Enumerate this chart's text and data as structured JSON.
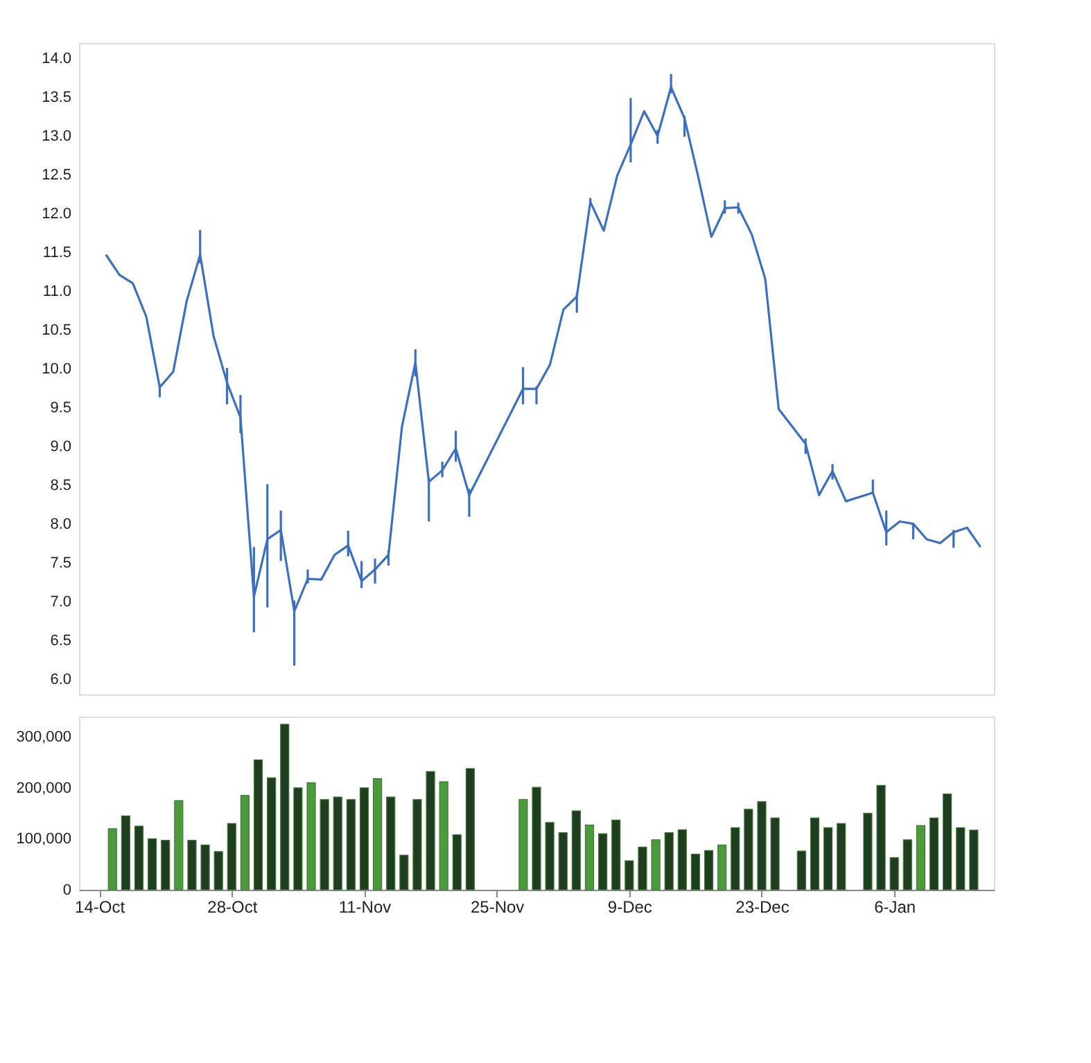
{
  "chart_data": [
    {
      "type": "line",
      "tick_labels": "y",
      "categories": [
        null,
        null,
        null,
        null,
        null,
        null,
        null,
        null,
        null,
        null,
        null,
        null,
        null,
        null,
        null,
        null,
        null,
        null,
        null,
        null,
        null,
        null,
        null,
        null,
        null,
        null,
        null,
        null,
        null,
        null,
        null,
        null,
        null,
        null,
        null,
        null,
        null,
        null,
        null,
        null,
        null,
        null,
        null,
        null,
        null,
        null,
        null,
        null,
        null,
        null,
        null,
        null,
        null,
        null,
        null,
        null,
        null,
        null,
        null,
        null,
        null,
        null,
        null,
        null,
        null,
        null,
        null
      ],
      "ylim": [
        5.8,
        14.2
      ],
      "yticks": [
        {
          "value": 6,
          "label": "6.0"
        },
        {
          "value": 6.5,
          "label": "6.5"
        },
        {
          "value": 7,
          "label": "7.0"
        },
        {
          "value": 7.5,
          "label": "7.5"
        },
        {
          "value": 8,
          "label": "8.0"
        },
        {
          "value": 8.5,
          "label": "8.5"
        },
        {
          "value": 9,
          "label": "9.0"
        },
        {
          "value": 9.5,
          "label": "9.5"
        },
        {
          "value": 10,
          "label": "10.0"
        },
        {
          "value": 10.5,
          "label": "10.5"
        },
        {
          "value": 11,
          "label": "11.0"
        },
        {
          "value": 11.5,
          "label": "11.5"
        },
        {
          "value": 12,
          "label": "12.0"
        },
        {
          "value": 12.5,
          "label": "12.5"
        },
        {
          "value": 13,
          "label": "13.0"
        },
        {
          "value": 13.5,
          "label": "13.5"
        },
        {
          "value": 14,
          "label": "14.0"
        }
      ],
      "series": [
        {
          "color": "#3b6fc0",
          "values": [
            null,
            11.47,
            11.21,
            11.1,
            10.67,
            9.76,
            9.96,
            10.87,
            11.47,
            10.42,
            9.82,
            9.37,
            7.06,
            7.8,
            7.92,
            6.87,
            7.29,
            7.28,
            7.6,
            7.72,
            7.26,
            7.41,
            7.6,
            9.25,
            10.08,
            8.54,
            8.69,
            8.97,
            8.37,
            null,
            null,
            null,
            9.74,
            9.74,
            10.05,
            10.76,
            10.93,
            12.15,
            11.78,
            12.49,
            12.89,
            13.32,
            13.0,
            13.63,
            13.23,
            12.49,
            11.7,
            12.07,
            12.08,
            11.73,
            11.16,
            9.48,
            null,
            9.03,
            8.37,
            8.68,
            8.29,
            null,
            8.4,
            7.89,
            8.03,
            8.0,
            7.8,
            7.75,
            7.89,
            7.95,
            7.7
          ],
          "errors": [
            null,
            null,
            null,
            null,
            null,
            [
              9.63,
              9.8
            ],
            null,
            null,
            [
              11.36,
              11.79
            ],
            null,
            [
              9.54,
              10.01
            ],
            [
              9.17,
              9.66
            ],
            [
              6.6,
              7.7
            ],
            [
              6.92,
              8.51
            ],
            [
              7.52,
              8.17
            ],
            [
              6.17,
              7.01
            ],
            [
              7.23,
              7.41
            ],
            null,
            null,
            [
              7.58,
              7.91
            ],
            [
              7.17,
              7.52
            ],
            [
              7.23,
              7.55
            ],
            [
              7.46,
              7.66
            ],
            null,
            [
              9.9,
              10.25
            ],
            [
              8.03,
              8.6
            ],
            [
              8.6,
              8.8
            ],
            [
              8.8,
              9.2
            ],
            [
              8.09,
              8.45
            ],
            null,
            null,
            null,
            [
              9.54,
              10.02
            ],
            [
              9.54,
              9.77
            ],
            null,
            null,
            [
              10.72,
              10.98
            ],
            [
              12.1,
              12.2
            ],
            null,
            null,
            [
              12.66,
              13.49
            ],
            null,
            [
              12.9,
              13.08
            ],
            [
              13.55,
              13.8
            ],
            [
              12.99,
              13.26
            ],
            null,
            null,
            [
              12.0,
              12.17
            ],
            [
              12.0,
              12.14
            ],
            null,
            null,
            null,
            null,
            [
              8.9,
              9.1
            ],
            null,
            [
              8.57,
              8.77
            ],
            null,
            null,
            [
              8.4,
              8.57
            ],
            [
              7.72,
              8.17
            ],
            null,
            [
              7.8,
              8.0
            ],
            null,
            null,
            [
              7.69,
              7.92
            ],
            null,
            null
          ]
        }
      ]
    },
    {
      "type": "bar",
      "categories": [
        "14-Oct",
        null,
        null,
        null,
        null,
        null,
        null,
        null,
        null,
        null,
        "28-Oct",
        null,
        null,
        null,
        null,
        null,
        null,
        null,
        null,
        null,
        "11-Nov",
        null,
        null,
        null,
        null,
        null,
        null,
        null,
        null,
        null,
        "25-Nov",
        null,
        null,
        null,
        null,
        null,
        null,
        null,
        null,
        null,
        "9-Dec",
        null,
        null,
        null,
        null,
        null,
        null,
        null,
        null,
        null,
        "23-Dec",
        null,
        null,
        null,
        null,
        null,
        null,
        null,
        null,
        null,
        "6-Jan",
        null,
        null,
        null,
        null,
        null,
        null
      ],
      "ylim": [
        0,
        340000
      ],
      "yticks": [
        0,
        {
          "value": 100000,
          "label": "100,000"
        },
        {
          "value": 200000,
          "label": "200,000"
        },
        {
          "value": 300000,
          "label": "300,000"
        }
      ],
      "values": [
        null,
        120000,
        145000,
        125000,
        100000,
        97000,
        175000,
        97000,
        88000,
        75000,
        130000,
        185000,
        255000,
        220000,
        325000,
        200000,
        210000,
        177000,
        182000,
        177000,
        200000,
        218000,
        182000,
        68000,
        177000,
        232000,
        212000,
        108000,
        238000,
        null,
        null,
        null,
        177000,
        201000,
        132000,
        112000,
        155000,
        127000,
        110000,
        137000,
        57000,
        84000,
        98000,
        112000,
        118000,
        70000,
        77000,
        88000,
        122000,
        158000,
        173000,
        141000,
        null,
        76000,
        141000,
        122000,
        130000,
        null,
        150000,
        205000,
        63000,
        98000,
        126000,
        141000,
        188000,
        122000,
        117000
      ],
      "colors": [
        "#1f3d1f",
        "#4c9a3c",
        "#1f3d1f",
        "#1f3d1f",
        "#1f3d1f",
        "#1f3d1f",
        "#4c9a3c",
        "#1f3d1f",
        "#1f3d1f",
        "#1f3d1f",
        "#1f3d1f",
        "#4c9a3c",
        "#1f3d1f",
        "#1f3d1f",
        "#1f3d1f",
        "#1f3d1f",
        "#4c9a3c",
        "#1f3d1f",
        "#1f3d1f",
        "#1f3d1f",
        "#1f3d1f",
        "#4c9a3c",
        "#1f3d1f",
        "#1f3d1f",
        "#1f3d1f",
        "#1f3d1f",
        "#4c9a3c",
        "#1f3d1f",
        "#1f3d1f",
        "#1f3d1f",
        "#1f3d1f",
        "#1f3d1f",
        "#4c9a3c",
        "#1f3d1f",
        "#1f3d1f",
        "#1f3d1f",
        "#1f3d1f",
        "#4c9a3c",
        "#1f3d1f",
        "#1f3d1f",
        "#1f3d1f",
        "#1f3d1f",
        "#4c9a3c",
        "#1f3d1f",
        "#1f3d1f",
        "#1f3d1f",
        "#1f3d1f",
        "#4c9a3c",
        "#1f3d1f",
        "#1f3d1f",
        "#1f3d1f",
        "#1f3d1f",
        "#1f3d1f",
        "#1f3d1f",
        "#1f3d1f",
        "#1f3d1f",
        "#1f3d1f",
        "#1f3d1f",
        "#1f3d1f",
        "#1f3d1f",
        "#1f3d1f",
        "#1f3d1f",
        "#4c9a3c",
        "#1f3d1f",
        "#1f3d1f",
        "#1f3d1f",
        "#1f3d1f"
      ]
    }
  ]
}
